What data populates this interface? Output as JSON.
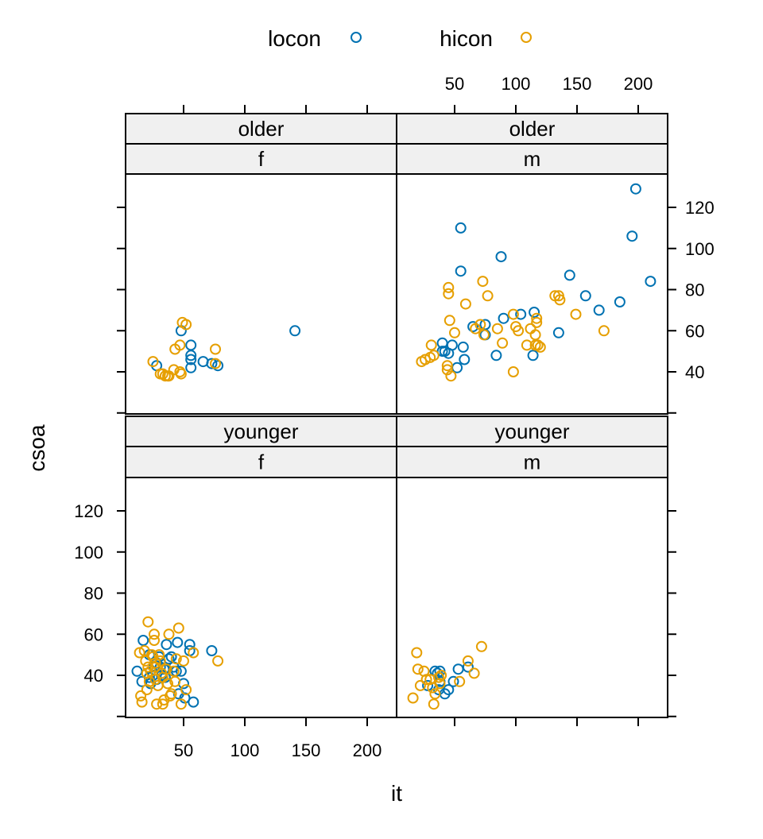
{
  "chart_data": {
    "type": "scatter",
    "xlabel": "it",
    "ylabel": "csoa",
    "xlim": [
      0,
      220
    ],
    "ylim": [
      20,
      135
    ],
    "x_ticks": [
      50,
      100,
      150,
      200
    ],
    "y_ticks": [
      40,
      60,
      80,
      100,
      120
    ],
    "legend_position": "top",
    "series": [
      {
        "name": "locon",
        "color": "#0072B2"
      },
      {
        "name": "hicon",
        "color": "#E69F00"
      }
    ],
    "panels": [
      {
        "id": "older-f",
        "strips": [
          "older",
          "f"
        ],
        "points": {
          "locon": [
            [
              28,
              43
            ],
            [
              48,
              60
            ],
            [
              56,
              53
            ],
            [
              56,
              48
            ],
            [
              56,
              46
            ],
            [
              56,
              42
            ],
            [
              66,
              45
            ],
            [
              73,
              44
            ],
            [
              78,
              43
            ],
            [
              141,
              60
            ]
          ],
          "hicon": [
            [
              25,
              45
            ],
            [
              31,
              39
            ],
            [
              33,
              39
            ],
            [
              35,
              38
            ],
            [
              37,
              38
            ],
            [
              38,
              38
            ],
            [
              42,
              41
            ],
            [
              43,
              51
            ],
            [
              47,
              53
            ],
            [
              47,
              40
            ],
            [
              48,
              39
            ],
            [
              49,
              64
            ],
            [
              52,
              63
            ],
            [
              76,
              51
            ],
            [
              76,
              44
            ]
          ]
        }
      },
      {
        "id": "older-m",
        "strips": [
          "older",
          "m"
        ],
        "points": {
          "locon": [
            [
              40,
              54
            ],
            [
              40,
              50
            ],
            [
              42,
              50
            ],
            [
              45,
              49
            ],
            [
              48,
              53
            ],
            [
              52,
              42
            ],
            [
              55,
              110
            ],
            [
              55,
              89
            ],
            [
              57,
              52
            ],
            [
              58,
              46
            ],
            [
              65,
              62
            ],
            [
              75,
              63
            ],
            [
              75,
              58
            ],
            [
              84,
              48
            ],
            [
              88,
              96
            ],
            [
              90,
              66
            ],
            [
              104,
              68
            ],
            [
              114,
              48
            ],
            [
              115,
              69
            ],
            [
              135,
              59
            ],
            [
              144,
              87
            ],
            [
              157,
              77
            ],
            [
              168,
              70
            ],
            [
              185,
              74
            ],
            [
              195,
              106
            ],
            [
              198,
              129
            ],
            [
              210,
              84
            ]
          ],
          "hicon": [
            [
              23,
              45
            ],
            [
              26,
              46
            ],
            [
              30,
              47
            ],
            [
              31,
              53
            ],
            [
              33,
              48
            ],
            [
              44,
              43
            ],
            [
              44,
              41
            ],
            [
              45,
              81
            ],
            [
              45,
              78
            ],
            [
              46,
              65
            ],
            [
              47,
              38
            ],
            [
              50,
              59
            ],
            [
              59,
              73
            ],
            [
              67,
              61
            ],
            [
              71,
              63
            ],
            [
              73,
              84
            ],
            [
              74,
              58
            ],
            [
              77,
              77
            ],
            [
              85,
              61
            ],
            [
              89,
              54
            ],
            [
              98,
              68
            ],
            [
              98,
              40
            ],
            [
              100,
              62
            ],
            [
              102,
              60
            ],
            [
              109,
              53
            ],
            [
              112,
              61
            ],
            [
              116,
              53
            ],
            [
              116,
              58
            ],
            [
              117,
              64
            ],
            [
              117,
              66
            ],
            [
              118,
              53
            ],
            [
              120,
              52
            ],
            [
              132,
              77
            ],
            [
              135,
              77
            ],
            [
              136,
              75
            ],
            [
              149,
              68
            ],
            [
              172,
              60
            ]
          ]
        }
      },
      {
        "id": "younger-f",
        "strips": [
          "younger",
          "f"
        ],
        "points": {
          "locon": [
            [
              12,
              42
            ],
            [
              16,
              37
            ],
            [
              17,
              57
            ],
            [
              22,
              50
            ],
            [
              22,
              39
            ],
            [
              23,
              36
            ],
            [
              25,
              40
            ],
            [
              26,
              44
            ],
            [
              28,
              46
            ],
            [
              28,
              38
            ],
            [
              30,
              49
            ],
            [
              31,
              44
            ],
            [
              32,
              40
            ],
            [
              34,
              43
            ],
            [
              35,
              39
            ],
            [
              36,
              55
            ],
            [
              38,
              48
            ],
            [
              40,
              49
            ],
            [
              42,
              44
            ],
            [
              44,
              42
            ],
            [
              45,
              56
            ],
            [
              46,
              31
            ],
            [
              48,
              42
            ],
            [
              50,
              36
            ],
            [
              51,
              29
            ],
            [
              55,
              55
            ],
            [
              55,
              52
            ],
            [
              58,
              27
            ],
            [
              73,
              52
            ]
          ],
          "hicon": [
            [
              14,
              51
            ],
            [
              15,
              30
            ],
            [
              16,
              27
            ],
            [
              18,
              52
            ],
            [
              19,
              47
            ],
            [
              20,
              33
            ],
            [
              20,
              41
            ],
            [
              21,
              44
            ],
            [
              21,
              66
            ],
            [
              22,
              37
            ],
            [
              23,
              42
            ],
            [
              24,
              50
            ],
            [
              25,
              49
            ],
            [
              26,
              60
            ],
            [
              26,
              57
            ],
            [
              27,
              46
            ],
            [
              27,
              44
            ],
            [
              27,
              38
            ],
            [
              28,
              26
            ],
            [
              29,
              35
            ],
            [
              30,
              50
            ],
            [
              31,
              47
            ],
            [
              32,
              41
            ],
            [
              33,
              26
            ],
            [
              33,
              39
            ],
            [
              34,
              28
            ],
            [
              36,
              43
            ],
            [
              37,
              36
            ],
            [
              38,
              60
            ],
            [
              39,
              30
            ],
            [
              40,
              31
            ],
            [
              42,
              42
            ],
            [
              43,
              37
            ],
            [
              44,
              48
            ],
            [
              46,
              63
            ],
            [
              48,
              26
            ],
            [
              50,
              47
            ],
            [
              52,
              33
            ],
            [
              58,
              51
            ],
            [
              78,
              47
            ]
          ]
        }
      },
      {
        "id": "younger-m",
        "strips": [
          "younger",
          "m"
        ],
        "points": {
          "locon": [
            [
              28,
              35
            ],
            [
              34,
              42
            ],
            [
              36,
              41
            ],
            [
              37,
              33
            ],
            [
              38,
              42
            ],
            [
              38,
              37
            ],
            [
              42,
              31
            ],
            [
              45,
              33
            ],
            [
              49,
              37
            ],
            [
              53,
              43
            ],
            [
              61,
              44
            ]
          ],
          "hicon": [
            [
              16,
              29
            ],
            [
              19,
              51
            ],
            [
              20,
              43
            ],
            [
              22,
              35
            ],
            [
              25,
              42
            ],
            [
              27,
              38
            ],
            [
              30,
              38
            ],
            [
              32,
              34
            ],
            [
              33,
              26
            ],
            [
              34,
              31
            ],
            [
              37,
              39
            ],
            [
              38,
              36
            ],
            [
              39,
              40
            ],
            [
              54,
              37
            ],
            [
              61,
              47
            ],
            [
              66,
              41
            ],
            [
              72,
              54
            ]
          ]
        }
      }
    ]
  }
}
